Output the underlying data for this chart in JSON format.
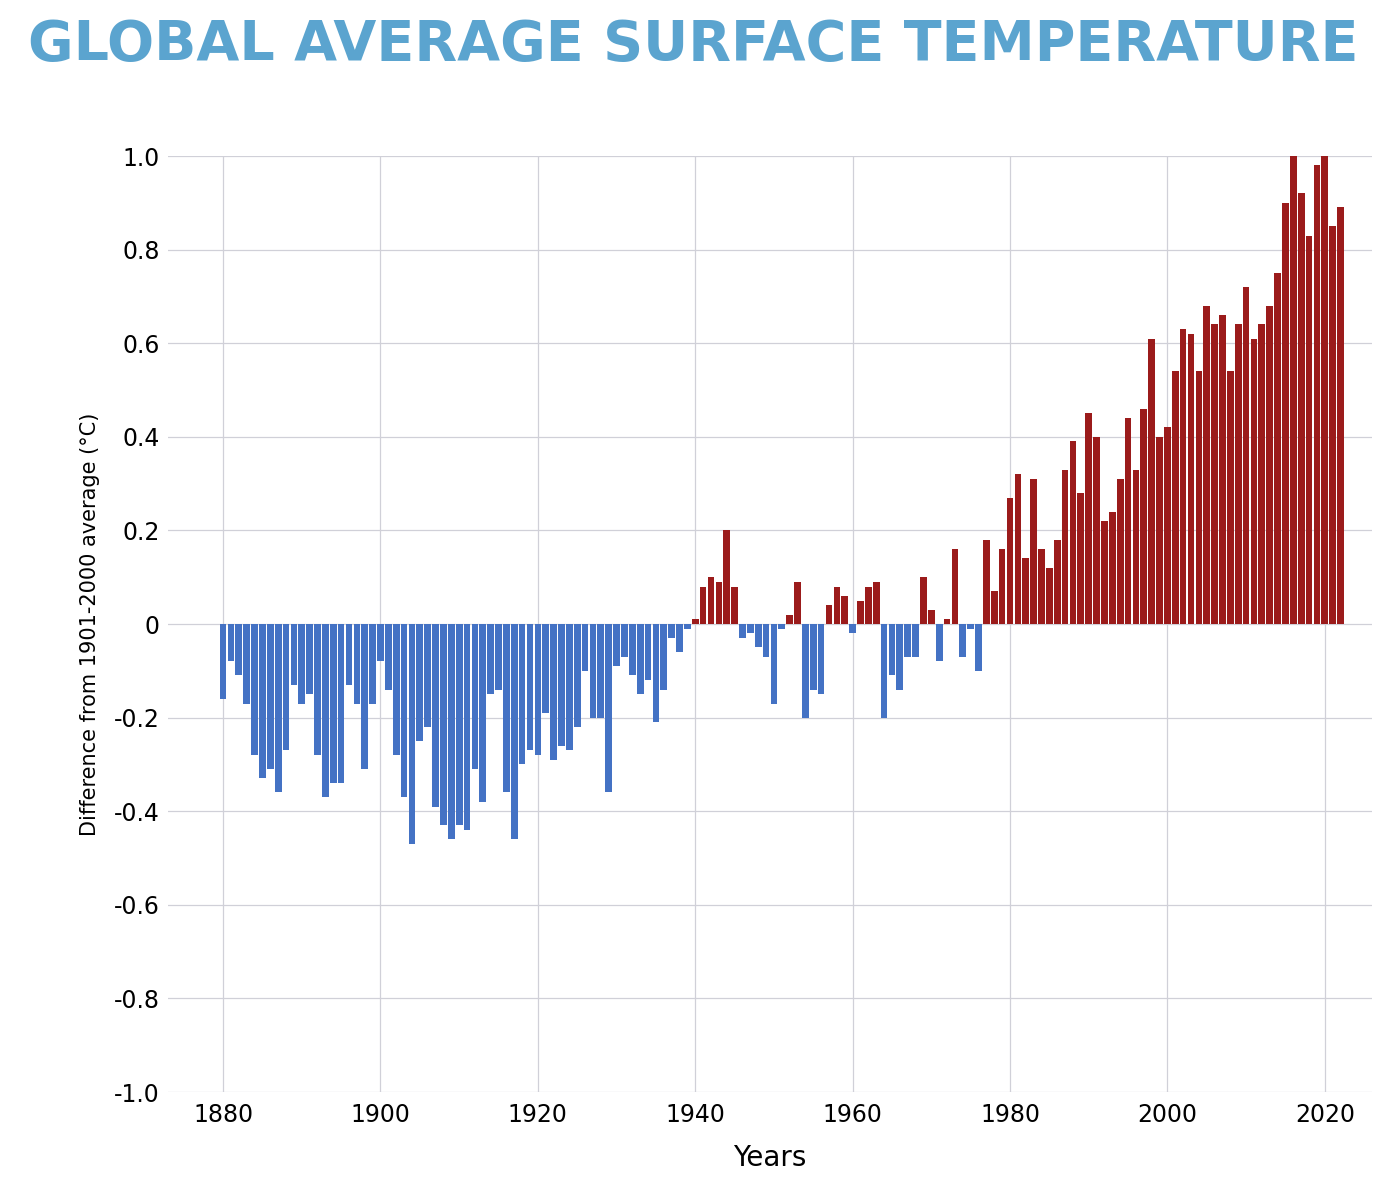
{
  "title": "GLOBAL AVERAGE SURFACE TEMPERATURE",
  "title_color": "#5BA4CF",
  "ylabel": "Difference from 1901-2000 average (°C)",
  "xlabel": "Years",
  "ylim": [
    -1.0,
    1.0
  ],
  "yticks": [
    -1.0,
    -0.8,
    -0.6,
    -0.4,
    -0.2,
    0.0,
    0.2,
    0.4,
    0.6,
    0.8,
    1.0
  ],
  "xticks": [
    1880,
    1900,
    1920,
    1940,
    1960,
    1980,
    2000,
    2020
  ],
  "background_color": "#ffffff",
  "grid_color": "#d0d0d8",
  "bar_color_positive": "#9B1B1B",
  "bar_color_negative": "#4472C4",
  "years": [
    1880,
    1881,
    1882,
    1883,
    1884,
    1885,
    1886,
    1887,
    1888,
    1889,
    1890,
    1891,
    1892,
    1893,
    1894,
    1895,
    1896,
    1897,
    1898,
    1899,
    1900,
    1901,
    1902,
    1903,
    1904,
    1905,
    1906,
    1907,
    1908,
    1909,
    1910,
    1911,
    1912,
    1913,
    1914,
    1915,
    1916,
    1917,
    1918,
    1919,
    1920,
    1921,
    1922,
    1923,
    1924,
    1925,
    1926,
    1927,
    1928,
    1929,
    1930,
    1931,
    1932,
    1933,
    1934,
    1935,
    1936,
    1937,
    1938,
    1939,
    1940,
    1941,
    1942,
    1943,
    1944,
    1945,
    1946,
    1947,
    1948,
    1949,
    1950,
    1951,
    1952,
    1953,
    1954,
    1955,
    1956,
    1957,
    1958,
    1959,
    1960,
    1961,
    1962,
    1963,
    1964,
    1965,
    1966,
    1967,
    1968,
    1969,
    1970,
    1971,
    1972,
    1973,
    1974,
    1975,
    1976,
    1977,
    1978,
    1979,
    1980,
    1981,
    1982,
    1983,
    1984,
    1985,
    1986,
    1987,
    1988,
    1989,
    1990,
    1991,
    1992,
    1993,
    1994,
    1995,
    1996,
    1997,
    1998,
    1999,
    2000,
    2001,
    2002,
    2003,
    2004,
    2005,
    2006,
    2007,
    2008,
    2009,
    2010,
    2011,
    2012,
    2013,
    2014,
    2015,
    2016,
    2017,
    2018,
    2019,
    2020,
    2021,
    2022
  ],
  "values": [
    -0.16,
    -0.08,
    -0.11,
    -0.17,
    -0.28,
    -0.33,
    -0.31,
    -0.36,
    -0.27,
    -0.13,
    -0.17,
    -0.15,
    -0.28,
    -0.37,
    -0.34,
    -0.34,
    -0.13,
    -0.17,
    -0.31,
    -0.17,
    -0.08,
    -0.14,
    -0.28,
    -0.37,
    -0.47,
    -0.25,
    -0.22,
    -0.39,
    -0.43,
    -0.46,
    -0.43,
    -0.44,
    -0.31,
    -0.38,
    -0.15,
    -0.14,
    -0.36,
    -0.46,
    -0.3,
    -0.27,
    -0.28,
    -0.19,
    -0.29,
    -0.26,
    -0.27,
    -0.22,
    -0.1,
    -0.2,
    -0.2,
    -0.36,
    -0.09,
    -0.07,
    -0.11,
    -0.15,
    -0.12,
    -0.21,
    -0.14,
    -0.03,
    -0.06,
    -0.01,
    0.01,
    0.08,
    0.1,
    0.09,
    0.2,
    0.08,
    -0.03,
    -0.02,
    -0.05,
    -0.07,
    -0.17,
    -0.01,
    0.02,
    0.09,
    -0.2,
    -0.14,
    -0.15,
    0.04,
    0.08,
    0.06,
    -0.02,
    0.05,
    0.08,
    0.09,
    -0.2,
    -0.11,
    -0.14,
    -0.07,
    -0.07,
    0.1,
    0.03,
    -0.08,
    0.01,
    0.16,
    -0.07,
    -0.01,
    -0.1,
    0.18,
    0.07,
    0.16,
    0.27,
    0.32,
    0.14,
    0.31,
    0.16,
    0.12,
    0.18,
    0.33,
    0.39,
    0.28,
    0.45,
    0.4,
    0.22,
    0.24,
    0.31,
    0.44,
    0.33,
    0.46,
    0.61,
    0.4,
    0.42,
    0.54,
    0.63,
    0.62,
    0.54,
    0.68,
    0.64,
    0.66,
    0.54,
    0.64,
    0.72,
    0.61,
    0.64,
    0.68,
    0.75,
    0.9,
    1.01,
    0.92,
    0.83,
    0.98,
    1.02,
    0.85,
    0.89
  ]
}
